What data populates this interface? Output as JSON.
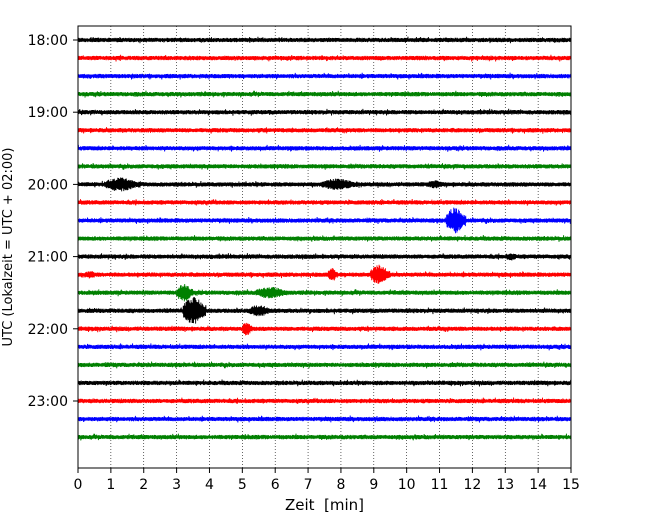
{
  "chart_data": {
    "type": "line",
    "title": "",
    "xlabel": "Zeit  [min]",
    "ylabel": "UTC (Lokalzeit = UTC + 02:00)",
    "xlim": [
      0,
      15
    ],
    "x_ticks": [
      "0",
      "1",
      "2",
      "3",
      "4",
      "5",
      "6",
      "7",
      "8",
      "9",
      "10",
      "11",
      "12",
      "13",
      "14",
      "15"
    ],
    "y_ticks": [
      "18:00",
      "19:00",
      "20:00",
      "21:00",
      "22:00",
      "23:00"
    ],
    "grid": "vertical-dotted",
    "legend": "none",
    "trace_interval_minutes": 15,
    "start_time": "18:00",
    "colors": [
      "#000000",
      "#ff0000",
      "#0000ff",
      "#008000"
    ],
    "series": [
      {
        "start": "18:00",
        "color": "#000000",
        "events": []
      },
      {
        "start": "18:15",
        "color": "#ff0000",
        "events": []
      },
      {
        "start": "18:30",
        "color": "#0000ff",
        "events": []
      },
      {
        "start": "18:45",
        "color": "#008000",
        "events": []
      },
      {
        "start": "19:00",
        "color": "#000000",
        "events": []
      },
      {
        "start": "19:15",
        "color": "#ff0000",
        "events": []
      },
      {
        "start": "19:30",
        "color": "#0000ff",
        "events": []
      },
      {
        "start": "19:45",
        "color": "#008000",
        "events": []
      },
      {
        "start": "20:00",
        "color": "#000000",
        "events": [
          {
            "t0": 0.8,
            "t1": 1.9,
            "amp": 7
          },
          {
            "t0": 7.4,
            "t1": 8.5,
            "amp": 6
          },
          {
            "t0": 10.6,
            "t1": 11.2,
            "amp": 4
          }
        ]
      },
      {
        "start": "20:15",
        "color": "#ff0000",
        "events": []
      },
      {
        "start": "20:30",
        "color": "#0000ff",
        "events": [
          {
            "t0": 11.2,
            "t1": 11.8,
            "amp": 13
          }
        ]
      },
      {
        "start": "20:45",
        "color": "#008000",
        "events": []
      },
      {
        "start": "21:00",
        "color": "#000000",
        "events": [
          {
            "t0": 13.0,
            "t1": 13.4,
            "amp": 4
          }
        ]
      },
      {
        "start": "21:15",
        "color": "#ff0000",
        "events": [
          {
            "t0": 0.2,
            "t1": 0.6,
            "amp": 4
          },
          {
            "t0": 7.6,
            "t1": 7.9,
            "amp": 7
          },
          {
            "t0": 8.9,
            "t1": 9.5,
            "amp": 10
          }
        ]
      },
      {
        "start": "21:30",
        "color": "#008000",
        "events": [
          {
            "t0": 3.0,
            "t1": 3.5,
            "amp": 9
          },
          {
            "t0": 5.4,
            "t1": 6.4,
            "amp": 6
          }
        ]
      },
      {
        "start": "21:45",
        "color": "#000000",
        "events": [
          {
            "t0": 3.2,
            "t1": 3.9,
            "amp": 14
          },
          {
            "t0": 5.2,
            "t1": 5.9,
            "amp": 6
          }
        ]
      },
      {
        "start": "22:00",
        "color": "#ff0000",
        "events": [
          {
            "t0": 5.0,
            "t1": 5.3,
            "amp": 7
          }
        ]
      },
      {
        "start": "22:15",
        "color": "#0000ff",
        "events": []
      },
      {
        "start": "22:30",
        "color": "#008000",
        "events": []
      },
      {
        "start": "22:45",
        "color": "#000000",
        "events": []
      },
      {
        "start": "23:00",
        "color": "#ff0000",
        "events": []
      },
      {
        "start": "23:15",
        "color": "#0000ff",
        "events": []
      },
      {
        "start": "23:30",
        "color": "#008000",
        "events": []
      }
    ]
  }
}
